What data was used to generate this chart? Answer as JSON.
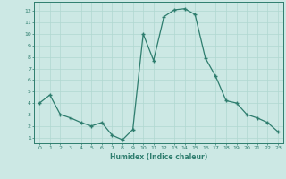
{
  "x": [
    0,
    1,
    2,
    3,
    4,
    5,
    6,
    7,
    8,
    9,
    10,
    11,
    12,
    13,
    14,
    15,
    16,
    17,
    18,
    19,
    20,
    21,
    22,
    23
  ],
  "y": [
    4.0,
    4.7,
    3.0,
    2.7,
    2.3,
    2.0,
    2.3,
    1.2,
    0.8,
    1.7,
    10.0,
    7.7,
    11.5,
    12.1,
    12.2,
    11.7,
    7.9,
    6.3,
    4.2,
    4.0,
    3.0,
    2.7,
    2.3,
    1.5
  ],
  "xlabel": "Humidex (Indice chaleur)",
  "xlim": [
    -0.5,
    23.5
  ],
  "ylim": [
    0.5,
    12.8
  ],
  "yticks": [
    1,
    2,
    3,
    4,
    5,
    6,
    7,
    8,
    9,
    10,
    11,
    12
  ],
  "xticks": [
    0,
    1,
    2,
    3,
    4,
    5,
    6,
    7,
    8,
    9,
    10,
    11,
    12,
    13,
    14,
    15,
    16,
    17,
    18,
    19,
    20,
    21,
    22,
    23
  ],
  "line_color": "#2e7d6e",
  "marker": "+",
  "bg_color": "#cce8e4",
  "grid_color": "#b0d8d0",
  "axis_label_color": "#2e7d6e",
  "tick_color": "#2e7d6e",
  "spine_color": "#2e7d6e"
}
